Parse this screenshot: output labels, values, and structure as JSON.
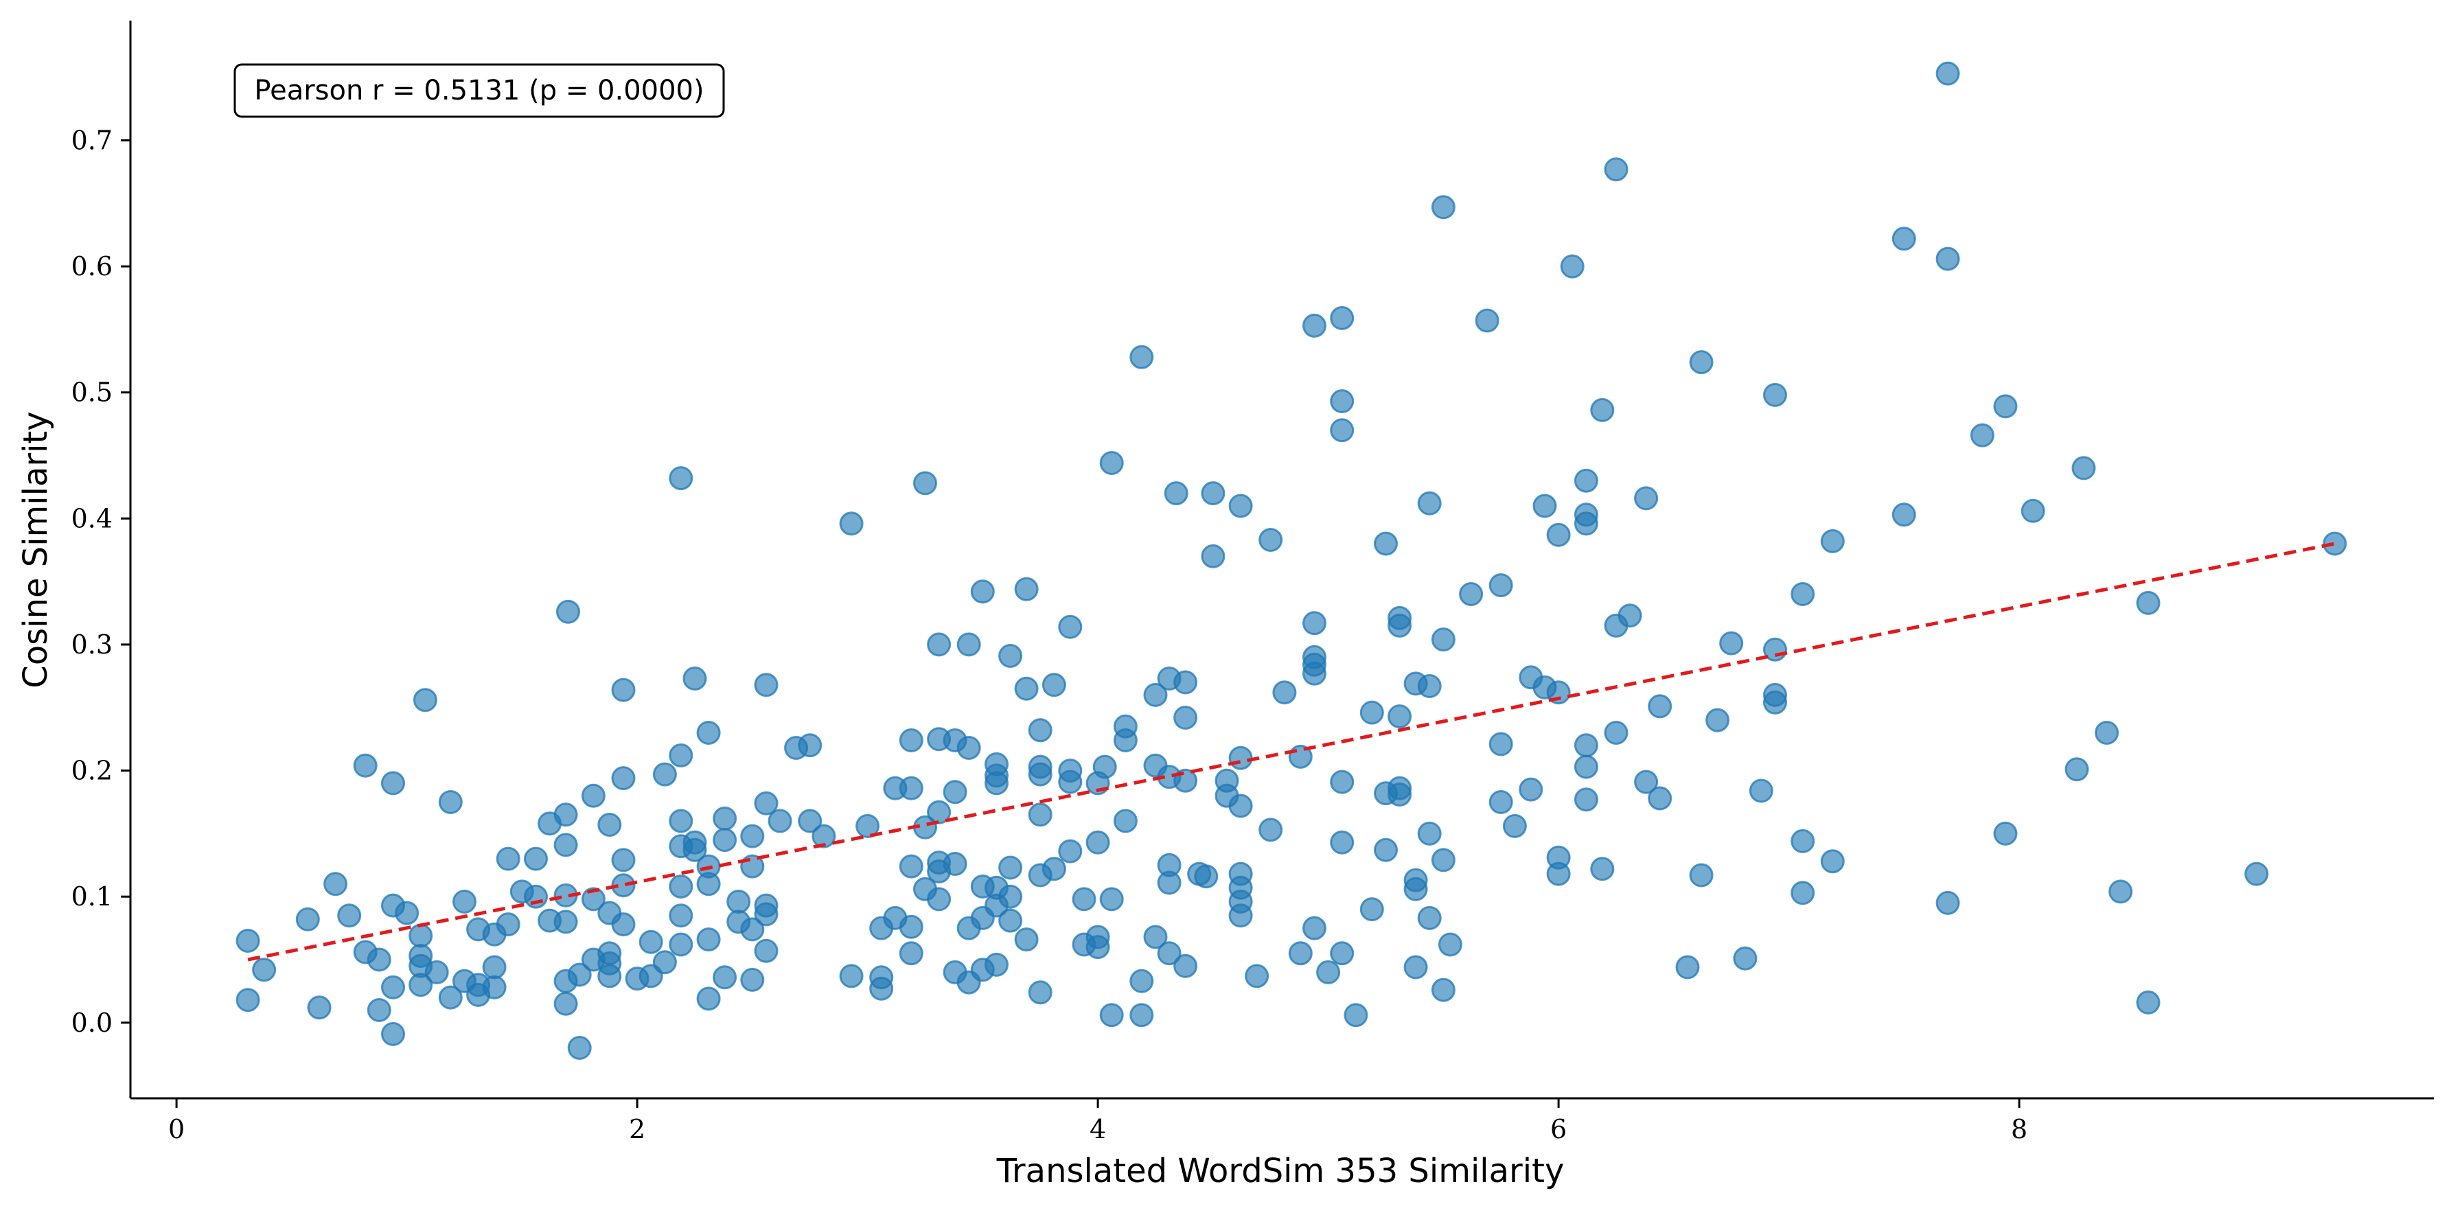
{
  "chart_data": {
    "type": "scatter",
    "title": "",
    "xlabel": "Translated WordSim 353 Similarity",
    "ylabel": "Cosine Similarity",
    "xlim": [
      -0.2,
      9.8
    ],
    "ylim": [
      -0.06,
      0.795
    ],
    "xticks": [
      0,
      2,
      4,
      6,
      8
    ],
    "yticks": [
      0.0,
      0.1,
      0.2,
      0.3,
      0.4,
      0.5,
      0.6,
      0.7
    ],
    "xtick_labels": [
      "0",
      "2",
      "4",
      "6",
      "8"
    ],
    "ytick_labels": [
      "0.0",
      "0.1",
      "0.2",
      "0.3",
      "0.4",
      "0.5",
      "0.6",
      "0.7"
    ],
    "grid": false,
    "annotation": "Pearson r = 0.5131 (p = 0.0000)",
    "colors": {
      "points": "#1f77b4",
      "trend": "#e31a1c"
    },
    "trendline": {
      "x": [
        0.31,
        9.37
      ],
      "y": [
        0.05,
        0.38
      ]
    },
    "points": [
      [
        0.31,
        0.065
      ],
      [
        0.31,
        0.018
      ],
      [
        0.38,
        0.042
      ],
      [
        0.62,
        0.012
      ],
      [
        0.57,
        0.082
      ],
      [
        0.69,
        0.11
      ],
      [
        0.75,
        0.085
      ],
      [
        0.82,
        0.056
      ],
      [
        0.82,
        0.204
      ],
      [
        0.88,
        0.05
      ],
      [
        0.88,
        0.01
      ],
      [
        0.94,
        0.093
      ],
      [
        0.94,
        0.19
      ],
      [
        0.94,
        0.028
      ],
      [
        0.94,
        -0.009
      ],
      [
        1.0,
        0.087
      ],
      [
        1.06,
        0.069
      ],
      [
        1.06,
        0.053
      ],
      [
        1.06,
        0.03
      ],
      [
        1.06,
        0.045
      ],
      [
        1.08,
        0.256
      ],
      [
        1.13,
        0.04
      ],
      [
        1.19,
        0.175
      ],
      [
        1.19,
        0.02
      ],
      [
        1.25,
        0.096
      ],
      [
        1.25,
        0.033
      ],
      [
        1.31,
        0.074
      ],
      [
        1.31,
        0.03
      ],
      [
        1.31,
        0.022
      ],
      [
        1.38,
        0.028
      ],
      [
        1.38,
        0.07
      ],
      [
        1.38,
        0.044
      ],
      [
        1.44,
        0.13
      ],
      [
        1.44,
        0.078
      ],
      [
        1.5,
        0.104
      ],
      [
        1.56,
        0.13
      ],
      [
        1.56,
        0.1
      ],
      [
        1.62,
        0.158
      ],
      [
        1.62,
        0.081
      ],
      [
        1.69,
        0.165
      ],
      [
        1.69,
        0.141
      ],
      [
        1.69,
        0.101
      ],
      [
        1.69,
        0.08
      ],
      [
        1.69,
        0.015
      ],
      [
        1.69,
        0.033
      ],
      [
        1.7,
        0.326
      ],
      [
        1.75,
        -0.02
      ],
      [
        1.75,
        0.038
      ],
      [
        1.81,
        0.18
      ],
      [
        1.81,
        0.098
      ],
      [
        1.81,
        0.05
      ],
      [
        1.88,
        0.157
      ],
      [
        1.88,
        0.087
      ],
      [
        1.88,
        0.055
      ],
      [
        1.88,
        0.047
      ],
      [
        1.88,
        0.037
      ],
      [
        1.94,
        0.264
      ],
      [
        1.94,
        0.194
      ],
      [
        1.94,
        0.129
      ],
      [
        1.94,
        0.109
      ],
      [
        1.94,
        0.078
      ],
      [
        2.0,
        0.035
      ],
      [
        2.06,
        0.064
      ],
      [
        2.06,
        0.037
      ],
      [
        2.12,
        0.197
      ],
      [
        2.12,
        0.048
      ],
      [
        2.19,
        0.212
      ],
      [
        2.19,
        0.432
      ],
      [
        2.19,
        0.16
      ],
      [
        2.19,
        0.14
      ],
      [
        2.19,
        0.108
      ],
      [
        2.19,
        0.085
      ],
      [
        2.19,
        0.062
      ],
      [
        2.25,
        0.273
      ],
      [
        2.25,
        0.143
      ],
      [
        2.25,
        0.137
      ],
      [
        2.31,
        0.23
      ],
      [
        2.31,
        0.124
      ],
      [
        2.31,
        0.11
      ],
      [
        2.31,
        0.066
      ],
      [
        2.31,
        0.019
      ],
      [
        2.38,
        0.162
      ],
      [
        2.38,
        0.145
      ],
      [
        2.38,
        0.036
      ],
      [
        2.44,
        0.096
      ],
      [
        2.44,
        0.08
      ],
      [
        2.5,
        0.148
      ],
      [
        2.5,
        0.124
      ],
      [
        2.5,
        0.074
      ],
      [
        2.5,
        0.034
      ],
      [
        2.56,
        0.268
      ],
      [
        2.56,
        0.174
      ],
      [
        2.56,
        0.093
      ],
      [
        2.56,
        0.086
      ],
      [
        2.56,
        0.057
      ],
      [
        2.62,
        0.16
      ],
      [
        2.69,
        0.218
      ],
      [
        2.75,
        0.22
      ],
      [
        2.75,
        0.16
      ],
      [
        2.81,
        0.148
      ],
      [
        2.93,
        0.396
      ],
      [
        2.93,
        0.037
      ],
      [
        3.0,
        0.156
      ],
      [
        3.06,
        0.075
      ],
      [
        3.06,
        0.036
      ],
      [
        3.06,
        0.027
      ],
      [
        3.12,
        0.186
      ],
      [
        3.12,
        0.083
      ],
      [
        3.19,
        0.224
      ],
      [
        3.19,
        0.186
      ],
      [
        3.19,
        0.124
      ],
      [
        3.19,
        0.076
      ],
      [
        3.19,
        0.055
      ],
      [
        3.25,
        0.428
      ],
      [
        3.25,
        0.155
      ],
      [
        3.25,
        0.106
      ],
      [
        3.31,
        0.3
      ],
      [
        3.31,
        0.225
      ],
      [
        3.31,
        0.167
      ],
      [
        3.31,
        0.127
      ],
      [
        3.31,
        0.12
      ],
      [
        3.31,
        0.098
      ],
      [
        3.38,
        0.224
      ],
      [
        3.38,
        0.183
      ],
      [
        3.38,
        0.126
      ],
      [
        3.38,
        0.04
      ],
      [
        3.44,
        0.3
      ],
      [
        3.44,
        0.218
      ],
      [
        3.44,
        0.075
      ],
      [
        3.44,
        0.032
      ],
      [
        3.5,
        0.342
      ],
      [
        3.5,
        0.108
      ],
      [
        3.5,
        0.083
      ],
      [
        3.5,
        0.042
      ],
      [
        3.56,
        0.205
      ],
      [
        3.56,
        0.196
      ],
      [
        3.56,
        0.19
      ],
      [
        3.56,
        0.107
      ],
      [
        3.56,
        0.093
      ],
      [
        3.56,
        0.046
      ],
      [
        3.62,
        0.291
      ],
      [
        3.62,
        0.123
      ],
      [
        3.62,
        0.081
      ],
      [
        3.62,
        0.1
      ],
      [
        3.69,
        0.344
      ],
      [
        3.69,
        0.265
      ],
      [
        3.69,
        0.066
      ],
      [
        3.75,
        0.232
      ],
      [
        3.75,
        0.203
      ],
      [
        3.75,
        0.197
      ],
      [
        3.75,
        0.165
      ],
      [
        3.75,
        0.117
      ],
      [
        3.75,
        0.024
      ],
      [
        3.81,
        0.268
      ],
      [
        3.81,
        0.122
      ],
      [
        3.88,
        0.314
      ],
      [
        3.88,
        0.2
      ],
      [
        3.88,
        0.191
      ],
      [
        3.88,
        0.136
      ],
      [
        3.94,
        0.098
      ],
      [
        3.94,
        0.062
      ],
      [
        4.0,
        0.19
      ],
      [
        4.0,
        0.143
      ],
      [
        4.0,
        0.068
      ],
      [
        4.0,
        0.06
      ],
      [
        4.03,
        0.203
      ],
      [
        4.06,
        0.444
      ],
      [
        4.06,
        0.098
      ],
      [
        4.06,
        0.006
      ],
      [
        4.12,
        0.235
      ],
      [
        4.12,
        0.224
      ],
      [
        4.12,
        0.16
      ],
      [
        4.19,
        0.528
      ],
      [
        4.19,
        0.033
      ],
      [
        4.19,
        0.006
      ],
      [
        4.25,
        0.26
      ],
      [
        4.25,
        0.204
      ],
      [
        4.25,
        0.068
      ],
      [
        4.31,
        0.273
      ],
      [
        4.31,
        0.195
      ],
      [
        4.31,
        0.125
      ],
      [
        4.31,
        0.111
      ],
      [
        4.31,
        0.055
      ],
      [
        4.34,
        0.42
      ],
      [
        4.38,
        0.27
      ],
      [
        4.38,
        0.242
      ],
      [
        4.38,
        0.192
      ],
      [
        4.38,
        0.045
      ],
      [
        4.44,
        0.118
      ],
      [
        4.47,
        0.116
      ],
      [
        4.5,
        0.42
      ],
      [
        4.5,
        0.37
      ],
      [
        4.56,
        0.192
      ],
      [
        4.56,
        0.18
      ],
      [
        4.62,
        0.41
      ],
      [
        4.62,
        0.21
      ],
      [
        4.62,
        0.172
      ],
      [
        4.62,
        0.118
      ],
      [
        4.62,
        0.107
      ],
      [
        4.62,
        0.096
      ],
      [
        4.62,
        0.085
      ],
      [
        4.69,
        0.037
      ],
      [
        4.75,
        0.383
      ],
      [
        4.75,
        0.153
      ],
      [
        4.81,
        0.262
      ],
      [
        4.88,
        0.211
      ],
      [
        4.88,
        0.055
      ],
      [
        4.94,
        0.553
      ],
      [
        4.94,
        0.317
      ],
      [
        4.94,
        0.29
      ],
      [
        4.94,
        0.284
      ],
      [
        4.94,
        0.277
      ],
      [
        4.94,
        0.075
      ],
      [
        5.0,
        0.04
      ],
      [
        5.06,
        0.559
      ],
      [
        5.06,
        0.493
      ],
      [
        5.06,
        0.47
      ],
      [
        5.06,
        0.191
      ],
      [
        5.06,
        0.143
      ],
      [
        5.06,
        0.055
      ],
      [
        5.12,
        0.006
      ],
      [
        5.19,
        0.246
      ],
      [
        5.19,
        0.09
      ],
      [
        5.25,
        0.38
      ],
      [
        5.25,
        0.182
      ],
      [
        5.25,
        0.137
      ],
      [
        5.31,
        0.321
      ],
      [
        5.31,
        0.315
      ],
      [
        5.31,
        0.243
      ],
      [
        5.31,
        0.186
      ],
      [
        5.31,
        0.181
      ],
      [
        5.38,
        0.269
      ],
      [
        5.38,
        0.113
      ],
      [
        5.38,
        0.106
      ],
      [
        5.38,
        0.044
      ],
      [
        5.44,
        0.412
      ],
      [
        5.44,
        0.267
      ],
      [
        5.44,
        0.15
      ],
      [
        5.44,
        0.083
      ],
      [
        5.5,
        0.647
      ],
      [
        5.5,
        0.304
      ],
      [
        5.5,
        0.129
      ],
      [
        5.5,
        0.026
      ],
      [
        5.53,
        0.062
      ],
      [
        5.62,
        0.34
      ],
      [
        5.69,
        0.557
      ],
      [
        5.75,
        0.347
      ],
      [
        5.75,
        0.221
      ],
      [
        5.75,
        0.175
      ],
      [
        5.81,
        0.156
      ],
      [
        5.88,
        0.274
      ],
      [
        5.88,
        0.185
      ],
      [
        5.94,
        0.41
      ],
      [
        5.94,
        0.266
      ],
      [
        6.0,
        0.387
      ],
      [
        6.0,
        0.262
      ],
      [
        6.0,
        0.131
      ],
      [
        6.0,
        0.118
      ],
      [
        6.06,
        0.6
      ],
      [
        6.12,
        0.43
      ],
      [
        6.12,
        0.403
      ],
      [
        6.12,
        0.396
      ],
      [
        6.12,
        0.22
      ],
      [
        6.12,
        0.203
      ],
      [
        6.12,
        0.177
      ],
      [
        6.19,
        0.486
      ],
      [
        6.19,
        0.122
      ],
      [
        6.25,
        0.677
      ],
      [
        6.25,
        0.315
      ],
      [
        6.25,
        0.23
      ],
      [
        6.31,
        0.323
      ],
      [
        6.38,
        0.416
      ],
      [
        6.38,
        0.191
      ],
      [
        6.44,
        0.251
      ],
      [
        6.44,
        0.178
      ],
      [
        6.56,
        0.044
      ],
      [
        6.62,
        0.524
      ],
      [
        6.62,
        0.117
      ],
      [
        6.69,
        0.24
      ],
      [
        6.75,
        0.301
      ],
      [
        6.81,
        0.051
      ],
      [
        6.88,
        0.184
      ],
      [
        6.94,
        0.498
      ],
      [
        6.94,
        0.296
      ],
      [
        6.94,
        0.26
      ],
      [
        6.94,
        0.254
      ],
      [
        7.06,
        0.34
      ],
      [
        7.06,
        0.144
      ],
      [
        7.06,
        0.103
      ],
      [
        7.19,
        0.382
      ],
      [
        7.19,
        0.128
      ],
      [
        7.5,
        0.622
      ],
      [
        7.5,
        0.403
      ],
      [
        7.69,
        0.753
      ],
      [
        7.69,
        0.606
      ],
      [
        7.69,
        0.095
      ],
      [
        7.84,
        0.466
      ],
      [
        7.94,
        0.489
      ],
      [
        7.94,
        0.15
      ],
      [
        8.06,
        0.406
      ],
      [
        8.25,
        0.201
      ],
      [
        8.28,
        0.44
      ],
      [
        8.38,
        0.23
      ],
      [
        8.44,
        0.104
      ],
      [
        8.56,
        0.333
      ],
      [
        8.56,
        0.016
      ],
      [
        9.03,
        0.118
      ],
      [
        9.37,
        0.38
      ]
    ]
  }
}
